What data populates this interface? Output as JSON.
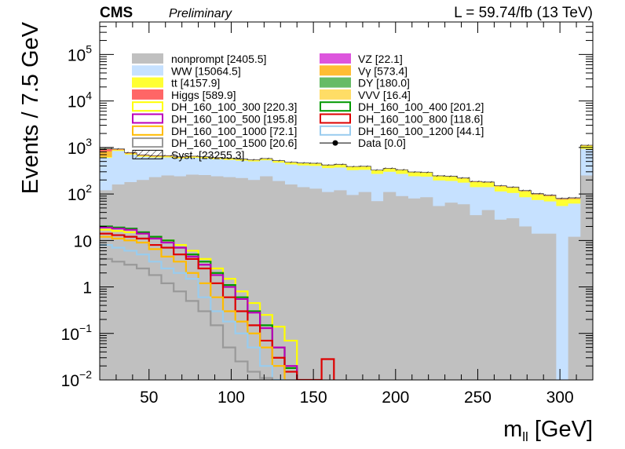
{
  "header": {
    "experiment": "CMS",
    "status": "Preliminary",
    "luminosity": "L = 59.74/fb (13 TeV)"
  },
  "chart_data": {
    "type": "bar",
    "stacked": true,
    "scale": "log",
    "xlabel_main": "m",
    "xlabel_sub": "ll",
    "xlabel_unit": " [GeV]",
    "ylabel": "Events / 7.5 GeV",
    "xlim": [
      20,
      320
    ],
    "ylim": [
      0.01,
      500000
    ],
    "x_ticks": [
      50,
      100,
      150,
      200,
      250,
      300
    ],
    "y_ticks": [
      {
        "value": 100000,
        "base": "10",
        "exp": "5"
      },
      {
        "value": 10000,
        "base": "10",
        "exp": "4"
      },
      {
        "value": 1000,
        "base": "10",
        "exp": "3"
      },
      {
        "value": 100,
        "base": "10",
        "exp": "2"
      },
      {
        "value": 10,
        "base": "10",
        "exp": ""
      },
      {
        "value": 1,
        "base": "1",
        "exp": ""
      },
      {
        "value": 0.1,
        "base": "10",
        "exp": "−1"
      },
      {
        "value": 0.01,
        "base": "10",
        "exp": "−2"
      }
    ],
    "bin_edges": [
      20,
      27.5,
      35,
      42.5,
      50,
      57.5,
      65,
      72.5,
      80,
      87.5,
      95,
      102.5,
      110,
      117.5,
      125,
      132.5,
      140,
      147.5,
      155,
      162.5,
      170,
      177.5,
      185,
      192.5,
      200,
      207.5,
      215,
      222.5,
      230,
      237.5,
      245,
      252.5,
      260,
      267.5,
      275,
      282.5,
      290,
      297.5,
      305,
      312.5,
      320
    ],
    "stack": [
      {
        "name": "nonprompt",
        "yield": "2405.5",
        "color": "#c0c0c0",
        "values": [
          120,
          160,
          180,
          200,
          230,
          250,
          240,
          260,
          255,
          240,
          230,
          220,
          200,
          240,
          190,
          160,
          140,
          130,
          110,
          120,
          95,
          110,
          70,
          110,
          90,
          80,
          85,
          55,
          65,
          60,
          35,
          45,
          28,
          30,
          20,
          14,
          14,
          0.01,
          12,
          250
        ]
      },
      {
        "name": "WW",
        "yield": "15064.5",
        "color": "#c6e1ff",
        "values": [
          480,
          680,
          520,
          430,
          380,
          360,
          340,
          340,
          330,
          320,
          310,
          300,
          300,
          290,
          280,
          270,
          270,
          270,
          250,
          250,
          230,
          220,
          200,
          190,
          180,
          160,
          150,
          140,
          125,
          115,
          105,
          95,
          85,
          75,
          65,
          60,
          55,
          55,
          50,
          680
        ]
      },
      {
        "name": "tt",
        "yield": "4157.9",
        "color": "#ffff33",
        "values": [
          25,
          35,
          30,
          28,
          25,
          30,
          28,
          30,
          30,
          30,
          30,
          30,
          30,
          35,
          40,
          40,
          45,
          48,
          50,
          55,
          55,
          55,
          50,
          50,
          55,
          50,
          50,
          45,
          45,
          40,
          40,
          35,
          32,
          30,
          28,
          22,
          20,
          20,
          15,
          150
        ]
      },
      {
        "name": "Vγ",
        "yield": "573.4",
        "color": "#ffbd33",
        "values": [
          200,
          30,
          25,
          20,
          18,
          15,
          12,
          10,
          10,
          9,
          8,
          8,
          7,
          7,
          6,
          6,
          5,
          5,
          5,
          4,
          4,
          4,
          3,
          3,
          3,
          3,
          3,
          2,
          2,
          2,
          2,
          2,
          2,
          2,
          2,
          2,
          2,
          2,
          2,
          20
        ]
      },
      {
        "name": "Higgs",
        "yield": "589.9",
        "color": "#ff6666",
        "values": [
          100,
          20,
          15,
          12,
          10,
          9,
          8,
          7,
          6,
          5,
          5,
          4,
          4,
          3,
          3,
          3,
          2,
          2,
          2,
          2,
          2,
          2,
          1,
          1,
          1,
          1,
          1,
          1,
          1,
          1,
          1,
          1,
          1,
          1,
          1,
          1,
          1,
          1,
          1,
          10
        ]
      },
      {
        "name": "DY",
        "yield": "180.0",
        "color": "#66bb66",
        "values": [
          20,
          5,
          4,
          3,
          3,
          2,
          2,
          2,
          2,
          2,
          2,
          1,
          1,
          1,
          1,
          1,
          1,
          1,
          1,
          1,
          1,
          1,
          1,
          1,
          1,
          1,
          1,
          1,
          1,
          1,
          1,
          1,
          1,
          1,
          1,
          1,
          1,
          1,
          1,
          5
        ]
      },
      {
        "name": "VZ",
        "yield": "22.1",
        "color": "#dd55dd",
        "values": [
          5,
          1,
          1,
          1,
          1,
          1,
          1,
          1,
          1,
          1,
          1,
          1,
          1,
          1,
          1,
          1,
          1,
          1,
          1,
          1,
          1,
          1,
          1,
          1,
          1,
          1,
          1,
          1,
          1,
          1,
          1,
          1,
          1,
          1,
          1,
          1,
          1,
          1,
          1,
          1
        ]
      },
      {
        "name": "VVV",
        "yield": "16.4",
        "color": "#ffdd66",
        "values": [
          2,
          1,
          1,
          1,
          1,
          1,
          1,
          1,
          1,
          1,
          1,
          1,
          1,
          1,
          1,
          1,
          1,
          1,
          1,
          1,
          1,
          1,
          1,
          1,
          1,
          1,
          1,
          1,
          1,
          1,
          1,
          1,
          1,
          1,
          1,
          1,
          1,
          1,
          1,
          1
        ]
      }
    ],
    "signals": [
      {
        "name": "DH_160_100_300",
        "yield": "220.3",
        "color": "#ffff00",
        "values": [
          17,
          16,
          15,
          14,
          12,
          10,
          8,
          6,
          4,
          2.5,
          1.5,
          0.8,
          0.45,
          0.25,
          0.14,
          0.07
        ]
      },
      {
        "name": "DH_160_100_400",
        "yield": "201.2",
        "color": "#009900",
        "values": [
          20,
          19,
          18,
          15,
          12,
          10,
          7,
          5,
          3.5,
          2,
          1.1,
          0.6,
          0.3,
          0.15,
          0.05,
          0.018
        ]
      },
      {
        "name": "DH_160_100_500",
        "yield": "195.8",
        "color": "#bb00bb",
        "values": [
          19,
          18,
          17,
          14,
          11,
          9,
          7,
          4.5,
          3,
          1.8,
          1,
          0.55,
          0.28,
          0.13,
          0.05,
          0.02
        ]
      },
      {
        "name": "DH_160_100_800",
        "yield": "118.6",
        "color": "#dd0000",
        "values": [
          14,
          13,
          12,
          11,
          8,
          7,
          5,
          4,
          2.5,
          1.2,
          0.6,
          0.3,
          0.15,
          0.07,
          0.03,
          0.015,
          0.01,
          0.01,
          0.028
        ]
      },
      {
        "name": "DH_160_100_1000",
        "yield": "72.1",
        "color": "#ffbb00",
        "values": [
          12,
          11,
          10,
          9,
          6.5,
          4.5,
          3.5,
          2,
          1.2,
          0.6,
          0.3,
          0.18,
          0.1,
          0.05,
          0.02
        ]
      },
      {
        "name": "DH_160_100_1200",
        "yield": "44.1",
        "color": "#99ccee",
        "values": [
          8,
          7,
          6,
          5,
          3.5,
          2.5,
          2,
          1.5,
          0.6,
          0.3,
          0.18,
          0.1,
          0.05,
          0.02,
          0.01
        ]
      },
      {
        "name": "DH_160_100_1500",
        "yield": "20.6",
        "color": "#999999",
        "values": [
          4,
          3.5,
          3,
          2.5,
          1.8,
          1.2,
          0.8,
          0.5,
          0.3,
          0.15,
          0.05,
          0.025,
          0.015,
          0.011
        ]
      }
    ],
    "legend": {
      "left": [
        {
          "label": "nonprompt [2405.5]",
          "fill": "#c0c0c0",
          "stroke": "none"
        },
        {
          "label": "WW [15064.5]",
          "fill": "#c6e1ff",
          "stroke": "none"
        },
        {
          "label": "tt [4157.9]",
          "fill": "#ffff33",
          "stroke": "none"
        },
        {
          "label": "Higgs [589.9]",
          "fill": "#ff6666",
          "stroke": "none"
        },
        {
          "label": "DH_160_100_300 [220.3]",
          "fill": "none",
          "stroke": "#ffff00"
        },
        {
          "label": "DH_160_100_500 [195.8]",
          "fill": "none",
          "stroke": "#bb00bb"
        },
        {
          "label": "DH_160_100_1000 [72.1]",
          "fill": "none",
          "stroke": "#ffbb00"
        },
        {
          "label": "DH_160_100_1500 [20.6]",
          "fill": "none",
          "stroke": "#999999"
        },
        {
          "label": "Syst. [23255.3]",
          "fill": "hatch",
          "stroke": "#000000"
        }
      ],
      "right": [
        {
          "label": "VZ [22.1]",
          "fill": "#dd55dd",
          "stroke": "none"
        },
        {
          "label": "Vγ [573.4]",
          "fill": "#ffbd33",
          "stroke": "none"
        },
        {
          "label": "DY [180.0]",
          "fill": "#66bb66",
          "stroke": "none"
        },
        {
          "label": "VVV [16.4]",
          "fill": "#ffdd66",
          "stroke": "none"
        },
        {
          "label": "DH_160_100_400 [201.2]",
          "fill": "none",
          "stroke": "#009900"
        },
        {
          "label": "DH_160_100_800 [118.6]",
          "fill": "none",
          "stroke": "#dd0000"
        },
        {
          "label": "DH_160_100_1200 [44.1]",
          "fill": "none",
          "stroke": "#99ccee"
        },
        {
          "label": "Data [0.0]",
          "fill": "data",
          "stroke": "#000000"
        }
      ]
    }
  }
}
